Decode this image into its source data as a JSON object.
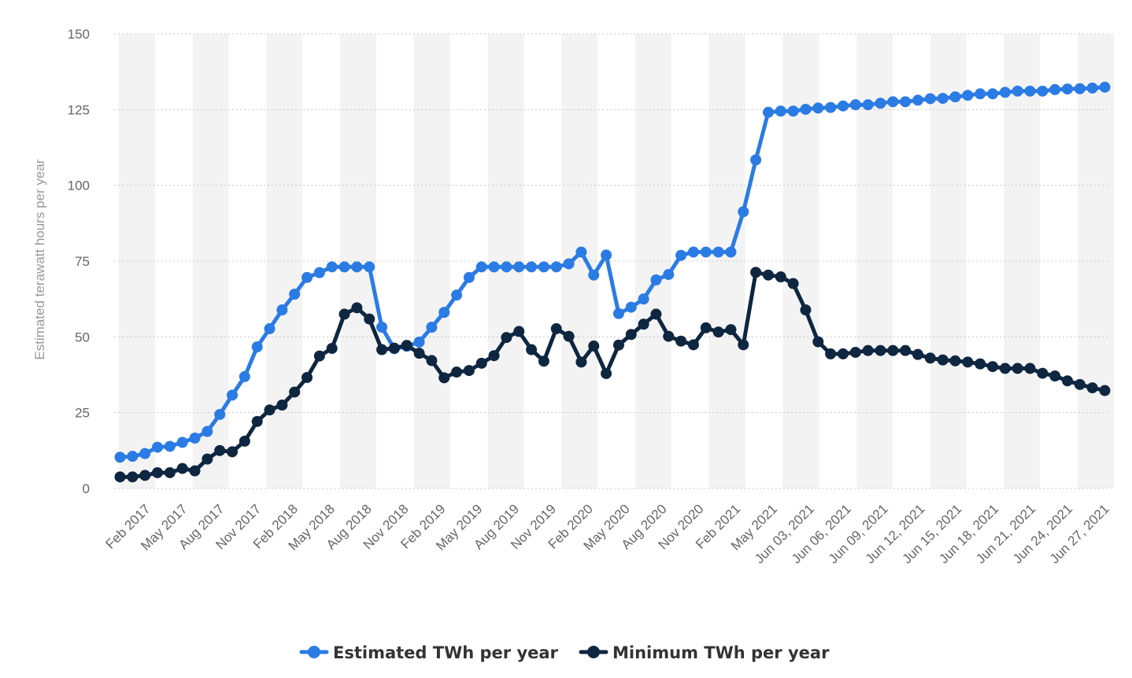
{
  "chart_data": {
    "type": "line",
    "title": "",
    "xlabel": "",
    "ylabel": "Estimated terawatt hours per year",
    "ylim": [
      0,
      150
    ],
    "yticks": [
      "0",
      "25",
      "50",
      "75",
      "100",
      "125",
      "150"
    ],
    "grid": true,
    "legend_position": "bottom",
    "x_tick_labels": [
      "Feb 2017",
      "May 2017",
      "Aug 2017",
      "Nov 2017",
      "Feb 2018",
      "May 2018",
      "Aug 2018",
      "Nov 2018",
      "Feb 2019",
      "May 2019",
      "Aug 2019",
      "Nov 2019",
      "Feb 2020",
      "May 2020",
      "Aug 2020",
      "Nov 2020",
      "Feb 2021",
      "May 2021",
      "Jun 03, 2021",
      "Jun 06, 2021",
      "Jun 09, 2021",
      "Jun 12, 2021",
      "Jun 15, 2021",
      "Jun 18, 2021",
      "Jun 21, 2021",
      "Jun 24, 2021",
      "Jun 27, 2021"
    ],
    "series": [
      {
        "name": "Estimated TWh per year",
        "color": "#2b7be4",
        "values": [
          10.3,
          10.6,
          11.5,
          13.6,
          13.9,
          15.2,
          16.6,
          18.8,
          24.4,
          30.8,
          36.9,
          46.7,
          52.7,
          58.9,
          64.1,
          69.6,
          71.2,
          73.1,
          73.1,
          73.1,
          73.1,
          53.2,
          46.1,
          46.9,
          48.3,
          53.2,
          58.1,
          63.8,
          69.6,
          73.1,
          73.1,
          73.1,
          73.1,
          73.1,
          73.1,
          73.1,
          74.1,
          78.0,
          70.4,
          77.0,
          57.7,
          59.8,
          62.5,
          68.8,
          70.6,
          76.9,
          78.0,
          78.0,
          78.0,
          78.0,
          91.3,
          108.4,
          124.1,
          124.5,
          124.5,
          125.1,
          125.5,
          125.7,
          126.2,
          126.6,
          126.6,
          127.1,
          127.6,
          127.6,
          128.1,
          128.6,
          128.7,
          129.2,
          129.7,
          130.2,
          130.2,
          130.7,
          131.1,
          131.1,
          131.1,
          131.6,
          131.8,
          131.9,
          132.1,
          132.4
        ]
      },
      {
        "name": "Minimum TWh per year",
        "color": "#0e2640",
        "values": [
          3.8,
          3.8,
          4.3,
          5.2,
          5.2,
          6.6,
          5.8,
          9.7,
          12.5,
          12.1,
          15.6,
          22.1,
          25.9,
          27.5,
          31.8,
          36.6,
          43.7,
          46.2,
          57.5,
          59.6,
          55.9,
          45.8,
          46.3,
          47.2,
          44.6,
          42.2,
          36.5,
          38.4,
          38.9,
          41.3,
          43.8,
          49.8,
          51.8,
          45.8,
          42.0,
          52.7,
          50.2,
          41.7,
          47.0,
          37.9,
          47.3,
          50.8,
          54.2,
          57.5,
          50.2,
          48.6,
          47.4,
          53.0,
          51.6,
          52.4,
          47.4,
          71.3,
          70.4,
          69.8,
          67.6,
          58.9,
          48.4,
          44.4,
          44.4,
          44.9,
          45.5,
          45.5,
          45.5,
          45.5,
          44.2,
          43.0,
          42.4,
          42.1,
          41.7,
          41.1,
          40.2,
          39.6,
          39.6,
          39.6,
          38.0,
          37.1,
          35.5,
          34.3,
          33.2,
          32.3
        ]
      }
    ]
  }
}
